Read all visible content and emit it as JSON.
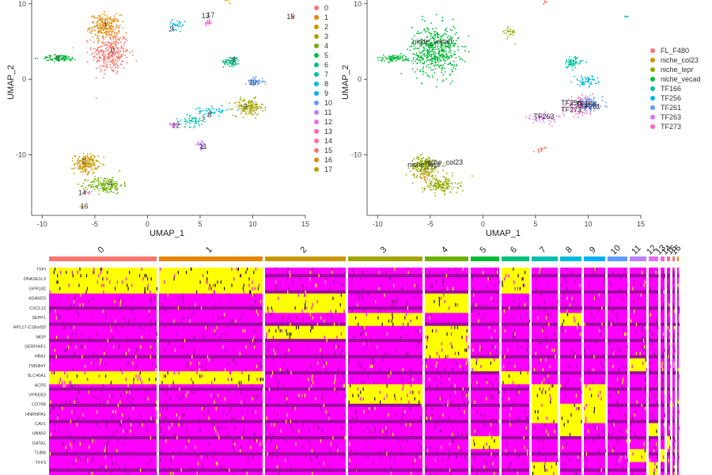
{
  "chart_data": [
    {
      "type": "scatter",
      "xlabel": "UMAP_1",
      "ylabel": "UMAP_2",
      "xlim": [
        -11,
        15
      ],
      "ylim": [
        -18,
        10.5
      ],
      "xticks": [
        "-10",
        "-5",
        "0",
        "5",
        "10",
        "15"
      ],
      "yticks": [
        "-10",
        "0",
        "10"
      ],
      "grid": false,
      "legend_position": "right",
      "legend": [
        "0",
        "1",
        "2",
        "3",
        "4",
        "5",
        "6",
        "7",
        "8",
        "9",
        "10",
        "11",
        "12",
        "13",
        "14",
        "15",
        "16",
        "17"
      ],
      "palette": [
        "#F8766D",
        "#E58700",
        "#C99800",
        "#A3A500",
        "#6BB100",
        "#00BA38",
        "#00BF7D",
        "#00C0AF",
        "#00BCD8",
        "#00B0F6",
        "#619CFF",
        "#B983FF",
        "#E76BF3",
        "#FD61D1",
        "#FF67A4",
        "#F8766D",
        "#E58700",
        "#C99800"
      ],
      "clusters": [
        {
          "id": "0",
          "color": "#F8766D",
          "center": [
            -3.5,
            3.5
          ],
          "spread": [
            1.6,
            2.6
          ],
          "n": 320,
          "label_pos": [
            -3.3,
            3.8
          ]
        },
        {
          "id": "1",
          "color": "#E58700",
          "center": [
            -4.0,
            7.0
          ],
          "spread": [
            1.3,
            1.4
          ],
          "n": 220,
          "label_pos": [
            -4.0,
            7.3
          ]
        },
        {
          "id": "2",
          "color": "#C99800",
          "center": [
            -5.8,
            -11.2
          ],
          "spread": [
            1.0,
            1.2
          ],
          "n": 170,
          "label_pos": [
            -6.0,
            -10.9
          ]
        },
        {
          "id": "3",
          "color": "#A3A500",
          "center": [
            9.6,
            -3.7
          ],
          "spread": [
            1.3,
            1.0
          ],
          "n": 150,
          "label_pos": [
            9.3,
            -3.6
          ]
        },
        {
          "id": "4",
          "color": "#6BB100",
          "center": [
            -4.0,
            -14.0
          ],
          "spread": [
            1.5,
            1.0
          ],
          "n": 160,
          "label_pos": [
            -3.5,
            -13.8
          ]
        },
        {
          "id": "5",
          "color": "#00BA38",
          "center": [
            -8.3,
            2.8
          ],
          "spread": [
            1.6,
            0.4
          ],
          "n": 90,
          "label_pos": [
            -8.5,
            2.8
          ]
        },
        {
          "id": "6",
          "color": "#00BF7D",
          "center": [
            8.0,
            2.4
          ],
          "spread": [
            0.7,
            0.6
          ],
          "n": 70,
          "label_pos": [
            8.2,
            2.6
          ]
        },
        {
          "id": "7",
          "color": "#00C0AF",
          "center": [
            4.2,
            -5.5
          ],
          "spread": [
            1.4,
            0.7
          ],
          "n": 55,
          "label_pos": [
            5.3,
            -5.3
          ]
        },
        {
          "id": "8",
          "color": "#00BCD8",
          "center": [
            6.3,
            -4.2
          ],
          "spread": [
            1.3,
            0.5
          ],
          "n": 55,
          "label_pos": [
            5.9,
            -4.7
          ]
        },
        {
          "id": "9",
          "color": "#00B0F6",
          "center": [
            2.8,
            7.2
          ],
          "spread": [
            0.7,
            0.6
          ],
          "n": 30,
          "label_pos": [
            2.3,
            6.7
          ]
        },
        {
          "id": "10",
          "color": "#619CFF",
          "center": [
            10.2,
            -0.3
          ],
          "spread": [
            0.8,
            0.5
          ],
          "n": 50,
          "label_pos": [
            10.0,
            -0.4
          ]
        },
        {
          "id": "11",
          "color": "#B983FF",
          "center": [
            5.1,
            -8.8
          ],
          "spread": [
            0.4,
            0.5
          ],
          "n": 30,
          "label_pos": [
            5.3,
            -8.9
          ]
        },
        {
          "id": "12",
          "color": "#E76BF3",
          "center": [
            2.5,
            -6.0
          ],
          "spread": [
            0.5,
            0.2
          ],
          "n": 20,
          "label_pos": [
            2.7,
            -6.1
          ]
        },
        {
          "id": "13",
          "color": "#FD61D1",
          "center": [
            5.8,
            7.5
          ],
          "spread": [
            0.3,
            0.4
          ],
          "n": 20,
          "label_pos": [
            5.5,
            8.4
          ]
        },
        {
          "id": "14",
          "color": "#FF67A4",
          "center": [
            -5.6,
            -15.0
          ],
          "spread": [
            0.4,
            0.2
          ],
          "n": 10,
          "label_pos": [
            -6.2,
            -15.0
          ]
        },
        {
          "id": "15",
          "color": "#F8766D",
          "center": [
            13.8,
            8.3
          ],
          "spread": [
            0.2,
            0.2
          ],
          "n": 6,
          "label_pos": [
            13.6,
            8.3
          ]
        },
        {
          "id": "16",
          "color": "#E58700",
          "center": [
            -6.3,
            -16.8
          ],
          "spread": [
            0.3,
            0.15
          ],
          "n": 6,
          "label_pos": [
            -6.0,
            -16.8
          ]
        },
        {
          "id": "17",
          "color": "#C99800",
          "center": [
            7.5,
            10.5
          ],
          "spread": [
            0.3,
            0.3
          ],
          "n": 8,
          "label_pos": [
            6.0,
            8.5
          ]
        }
      ]
    },
    {
      "type": "scatter",
      "xlabel": "UMAP_1",
      "ylabel": "UMAP_2",
      "xlim": [
        -11,
        15
      ],
      "ylim": [
        -18,
        10.5
      ],
      "xticks": [
        "-10",
        "-5",
        "0",
        "5",
        "10",
        "15"
      ],
      "yticks": [
        "-10",
        "0",
        "10"
      ],
      "grid": false,
      "legend_position": "right",
      "legend": [
        "FL_F480",
        "niche_col23",
        "niche_lepr",
        "niche_vecad",
        "TF166",
        "TF256",
        "TF261",
        "TF263",
        "TF273"
      ],
      "palette": [
        "#F8766D",
        "#D39200",
        "#93AA00",
        "#00BA38",
        "#00C19F",
        "#00B9E3",
        "#619CFF",
        "#DB72FB",
        "#FF61C3"
      ],
      "groups": [
        {
          "id": "niche_vecad",
          "color": "#00BA38",
          "center": [
            -4.5,
            3.8
          ],
          "spread": [
            2.0,
            3.0
          ],
          "n": 520,
          "label_pos": [
            -4.8,
            5.2
          ]
        },
        {
          "id": "niche_vecad",
          "color": "#00BA38",
          "center": [
            -8.3,
            2.8
          ],
          "spread": [
            1.6,
            0.4
          ],
          "n": 90,
          "label_pos": null
        },
        {
          "id": "niche_lepr",
          "color": "#93AA00",
          "center": [
            -5.5,
            -11.5
          ],
          "spread": [
            1.2,
            1.2
          ],
          "n": 200,
          "label_pos": [
            -5.5,
            -11.2
          ]
        },
        {
          "id": "niche_lepr",
          "color": "#93AA00",
          "center": [
            -4.0,
            -14.0
          ],
          "spread": [
            1.5,
            1.0
          ],
          "n": 160,
          "label_pos": null
        },
        {
          "id": "niche_col23",
          "color": "#D39200",
          "center": [
            -5.5,
            -12.8
          ],
          "spread": [
            0.6,
            0.6
          ],
          "n": 25,
          "label_pos": [
            -3.7,
            -11.0
          ]
        },
        {
          "id": "FL_F480",
          "color": "#F8766D",
          "center": [
            5.5,
            -9.2
          ],
          "spread": [
            0.4,
            0.4
          ],
          "n": 15,
          "label_pos": null
        },
        {
          "id": "TF166",
          "color": "#00C19F",
          "center": [
            8.5,
            2.2
          ],
          "spread": [
            0.8,
            0.7
          ],
          "n": 70,
          "label_pos": null
        },
        {
          "id": "TF256",
          "color": "#00B9E3",
          "center": [
            9.8,
            -0.2
          ],
          "spread": [
            1.0,
            0.6
          ],
          "n": 60,
          "label_pos": null
        },
        {
          "id": "TF261",
          "color": "#619CFF",
          "center": [
            10.0,
            -3.3
          ],
          "spread": [
            1.3,
            0.8
          ],
          "n": 140,
          "label_pos": [
            9.8,
            -3.2
          ]
        },
        {
          "id": "TF263",
          "color": "#DB72FB",
          "center": [
            5.8,
            -5.2
          ],
          "spread": [
            1.6,
            0.6
          ],
          "n": 50,
          "label_pos": [
            6.0,
            -4.9
          ]
        },
        {
          "id": "TF273",
          "color": "#FF61C3",
          "center": [
            9.2,
            -3.5
          ],
          "spread": [
            1.2,
            1.0
          ],
          "n": 80,
          "label_pos": [
            7.7,
            -3.2
          ]
        },
        {
          "id": "FL_F480",
          "color": "#F8766D",
          "center": [
            5.9,
            10.2
          ],
          "spread": [
            0.2,
            0.4
          ],
          "n": 8,
          "label_pos": null
        },
        {
          "id": "niche_lepr",
          "color": "#93AA00",
          "center": [
            2.5,
            6.2
          ],
          "spread": [
            0.6,
            0.8
          ],
          "n": 25,
          "label_pos": null
        },
        {
          "id": "TF166",
          "color": "#00C19F",
          "center": [
            13.6,
            8.3
          ],
          "spread": [
            0.2,
            0.1
          ],
          "n": 5,
          "label_pos": null
        }
      ],
      "labels": [
        {
          "text": "niche_vecad",
          "pos": [
            -4.8,
            5.0
          ]
        },
        {
          "text": "niche_lepr",
          "pos": [
            -5.6,
            -11.3
          ]
        },
        {
          "text": "niche_col23",
          "pos": [
            -3.7,
            -11.0
          ]
        },
        {
          "text": "TF256",
          "pos": [
            8.4,
            -3.1
          ]
        },
        {
          "text": "TF166",
          "pos": [
            9.8,
            -3.3
          ]
        },
        {
          "text": "TF261",
          "pos": [
            10.2,
            -3.6
          ]
        },
        {
          "text": "TF273",
          "pos": [
            8.4,
            -4.0
          ]
        },
        {
          "text": "TF263",
          "pos": [
            5.8,
            -4.9
          ]
        }
      ]
    },
    {
      "type": "heatmap",
      "column_groups": [
        "0",
        "1",
        "2",
        "3",
        "4",
        "5",
        "6",
        "7",
        "8",
        "9",
        "10",
        "11",
        "12",
        "13",
        "14",
        "15",
        "16"
      ],
      "group_widths": [
        139,
        134,
        105,
        97,
        58,
        39,
        38,
        36,
        30,
        30,
        28,
        24,
        15,
        8,
        7,
        6,
        5
      ],
      "group_colors": [
        "#F8766D",
        "#E58700",
        "#C99800",
        "#A3A500",
        "#6BB100",
        "#00BA38",
        "#00BF7D",
        "#00C0AF",
        "#00BCD8",
        "#00B0F6",
        "#619CFF",
        "#B983FF",
        "#E76BF3",
        "#FD61D1",
        "#FF67A4",
        "#F8766D",
        "#E58700"
      ],
      "row_labels": [
        "TFPI",
        "DNASE1L3",
        "GPR182",
        "ADAM23",
        "CXCL12",
        "SEPP1",
        "RPL17-C18orf32",
        "MGP",
        "SERPINF1",
        "HBA1",
        "TMSB4Y",
        "SLC40A1",
        "ACP5",
        "VPREB3",
        "CD79B",
        "HNRNPA1",
        "CAV1",
        "UBA52",
        "GATA1",
        "TUBB",
        "TFF3"
      ],
      "row_blocks": [
        {
          "rows": [
            0,
            8
          ],
          "high": [
            0,
            1,
            6
          ]
        },
        {
          "rows": [
            8,
            14
          ],
          "high": [
            2,
            4
          ]
        },
        {
          "rows": [
            14,
            18
          ],
          "high": [
            3,
            8
          ]
        },
        {
          "rows": [
            18,
            22
          ],
          "high": [
            2,
            4
          ]
        },
        {
          "rows": [
            22,
            28
          ],
          "high": [
            4
          ]
        },
        {
          "rows": [
            28,
            32
          ],
          "high": [
            5,
            11
          ]
        },
        {
          "rows": [
            32,
            36
          ],
          "high": [
            0,
            1,
            6
          ]
        },
        {
          "rows": [
            36,
            42
          ],
          "high": [
            3,
            7,
            9
          ]
        },
        {
          "rows": [
            42,
            48
          ],
          "high": [
            7,
            8,
            9
          ]
        },
        {
          "rows": [
            48,
            52
          ],
          "high": [
            8,
            12
          ]
        },
        {
          "rows": [
            52,
            56
          ],
          "high": [
            5,
            14
          ]
        },
        {
          "rows": [
            56,
            60
          ],
          "high": [
            11,
            13
          ]
        },
        {
          "rows": [
            60,
            64
          ],
          "high": [
            7,
            12
          ]
        }
      ],
      "colors": {
        "low": "#9E0CA0",
        "mid": "#FF00FF",
        "high": "#FFFF00",
        "dark": "#1a0a1a"
      }
    }
  ]
}
